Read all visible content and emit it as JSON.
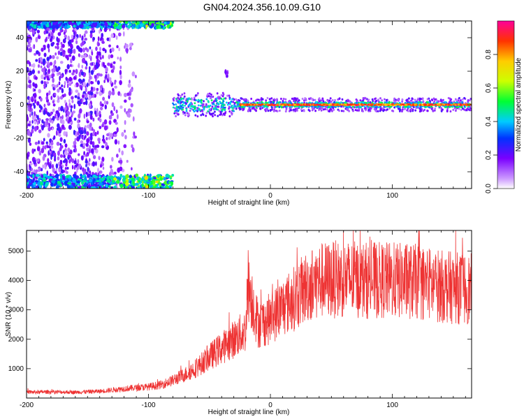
{
  "title": "GN04.2024.356.10.09.G10",
  "chart_data": [
    {
      "type": "heatmap",
      "xlabel": "Height of straight line (km)",
      "ylabel": "Frequency (Hz)",
      "xlim": [
        -200,
        165
      ],
      "ylim": [
        -50,
        50
      ],
      "xticks": [
        -200,
        -100,
        0,
        100
      ],
      "yticks": [
        -40,
        -20,
        0,
        20,
        40
      ],
      "colorbar": {
        "label": "Normalized spectral amplitude",
        "range": [
          0,
          1
        ],
        "ticks": [
          0.0,
          0.2,
          0.4,
          0.6,
          0.8
        ],
        "tick_labels": [
          "0.0",
          "0.2",
          "0.4",
          "0.6",
          "0.8"
        ]
      },
      "regions": [
        {
          "feature": "scattered noise",
          "x": [
            -200,
            -110
          ],
          "y": [
            -50,
            50
          ],
          "amplitude": [
            0.05,
            0.25
          ]
        },
        {
          "feature": "upper alias band",
          "x": [
            -200,
            -80
          ],
          "y": [
            46,
            50
          ],
          "amplitude": [
            0.2,
            0.45
          ]
        },
        {
          "feature": "lower alias band",
          "x": [
            -200,
            -80
          ],
          "y": [
            -50,
            -42
          ],
          "amplitude": [
            0.2,
            0.5
          ]
        },
        {
          "feature": "spot",
          "x": [
            -37,
            -35
          ],
          "y": [
            17,
            21
          ],
          "amplitude": [
            0.1,
            0.2
          ]
        },
        {
          "feature": "carrier line",
          "x": [
            -80,
            165
          ],
          "y": [
            -2,
            2
          ],
          "amplitude": [
            0.5,
            0.95
          ]
        }
      ],
      "grid": false
    },
    {
      "type": "line",
      "xlabel": "Height of straight line (km)",
      "ylabel": "SNR (10 * v/v)",
      "xlim": [
        -200,
        165
      ],
      "ylim": [
        0,
        5700
      ],
      "xticks": [
        -200,
        -100,
        0,
        100
      ],
      "yticks": [
        1000,
        2000,
        3000,
        4000,
        5000
      ],
      "color": "#ee3333",
      "grid": false,
      "series": [
        {
          "x": [
            -200,
            -180,
            -160,
            -140,
            -120,
            -110,
            -100,
            -90,
            -80,
            -70,
            -60,
            -50,
            -40,
            -30,
            -20,
            -19,
            -10,
            0,
            10,
            20,
            30,
            40,
            60,
            80,
            100,
            120,
            140,
            150,
            165
          ],
          "values": [
            200,
            210,
            200,
            230,
            320,
            350,
            380,
            450,
            600,
            800,
            1050,
            1400,
            1700,
            2000,
            2300,
            4000,
            2500,
            2700,
            3100,
            3400,
            3800,
            4000,
            4050,
            4000,
            4000,
            3950,
            3800,
            3750,
            3700
          ]
        }
      ]
    }
  ]
}
